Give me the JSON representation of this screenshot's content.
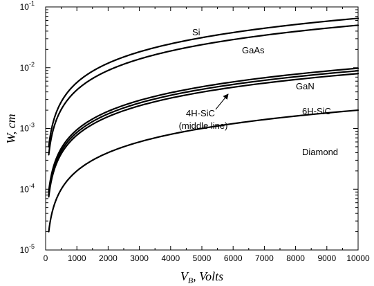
{
  "chart_data": {
    "type": "line",
    "xlabel_main": "V",
    "xlabel_sub": "B",
    "xlabel_rest": ", Volts",
    "ylabel": "W, cm",
    "xlim": [
      0,
      10000
    ],
    "ylim": [
      1e-05,
      0.1
    ],
    "yscale": "log",
    "x_ticks": [
      "0",
      "1000",
      "2000",
      "3000",
      "4000",
      "5000",
      "6000",
      "7000",
      "8000",
      "9000",
      "10000"
    ],
    "y_ticks": [
      {
        "base": "10",
        "exp": "-5"
      },
      {
        "base": "10",
        "exp": "-4"
      },
      {
        "base": "10",
        "exp": "-3"
      },
      {
        "base": "10",
        "exp": "-2"
      },
      {
        "base": "10",
        "exp": "-1"
      }
    ],
    "grid": false,
    "legend": "none",
    "series": [
      {
        "name": "Si",
        "x": [
          100,
          10000
        ],
        "y": [
          0.0005,
          0.065
        ]
      },
      {
        "name": "GaAs",
        "x": [
          100,
          10000
        ],
        "y": [
          0.00037,
          0.05
        ]
      },
      {
        "name": "GaN",
        "x": [
          100,
          10000
        ],
        "y": [
          9.2e-05,
          0.0098
        ]
      },
      {
        "name": "4H-SiC",
        "x": [
          100,
          10000
        ],
        "y": [
          8.3e-05,
          0.0089
        ]
      },
      {
        "name": "6H-SiC",
        "x": [
          100,
          10000
        ],
        "y": [
          7.5e-05,
          0.008
        ]
      },
      {
        "name": "Diamond",
        "x": [
          100,
          10000
        ],
        "y": [
          2e-05,
          0.002
        ]
      }
    ],
    "annotations": [
      {
        "text": "Si"
      },
      {
        "text": "GaAs"
      },
      {
        "text": "GaN"
      },
      {
        "text": "6H-SiC"
      },
      {
        "text": "4H-SiC"
      },
      {
        "text": "(middle line)"
      },
      {
        "text": "Diamond"
      }
    ]
  }
}
